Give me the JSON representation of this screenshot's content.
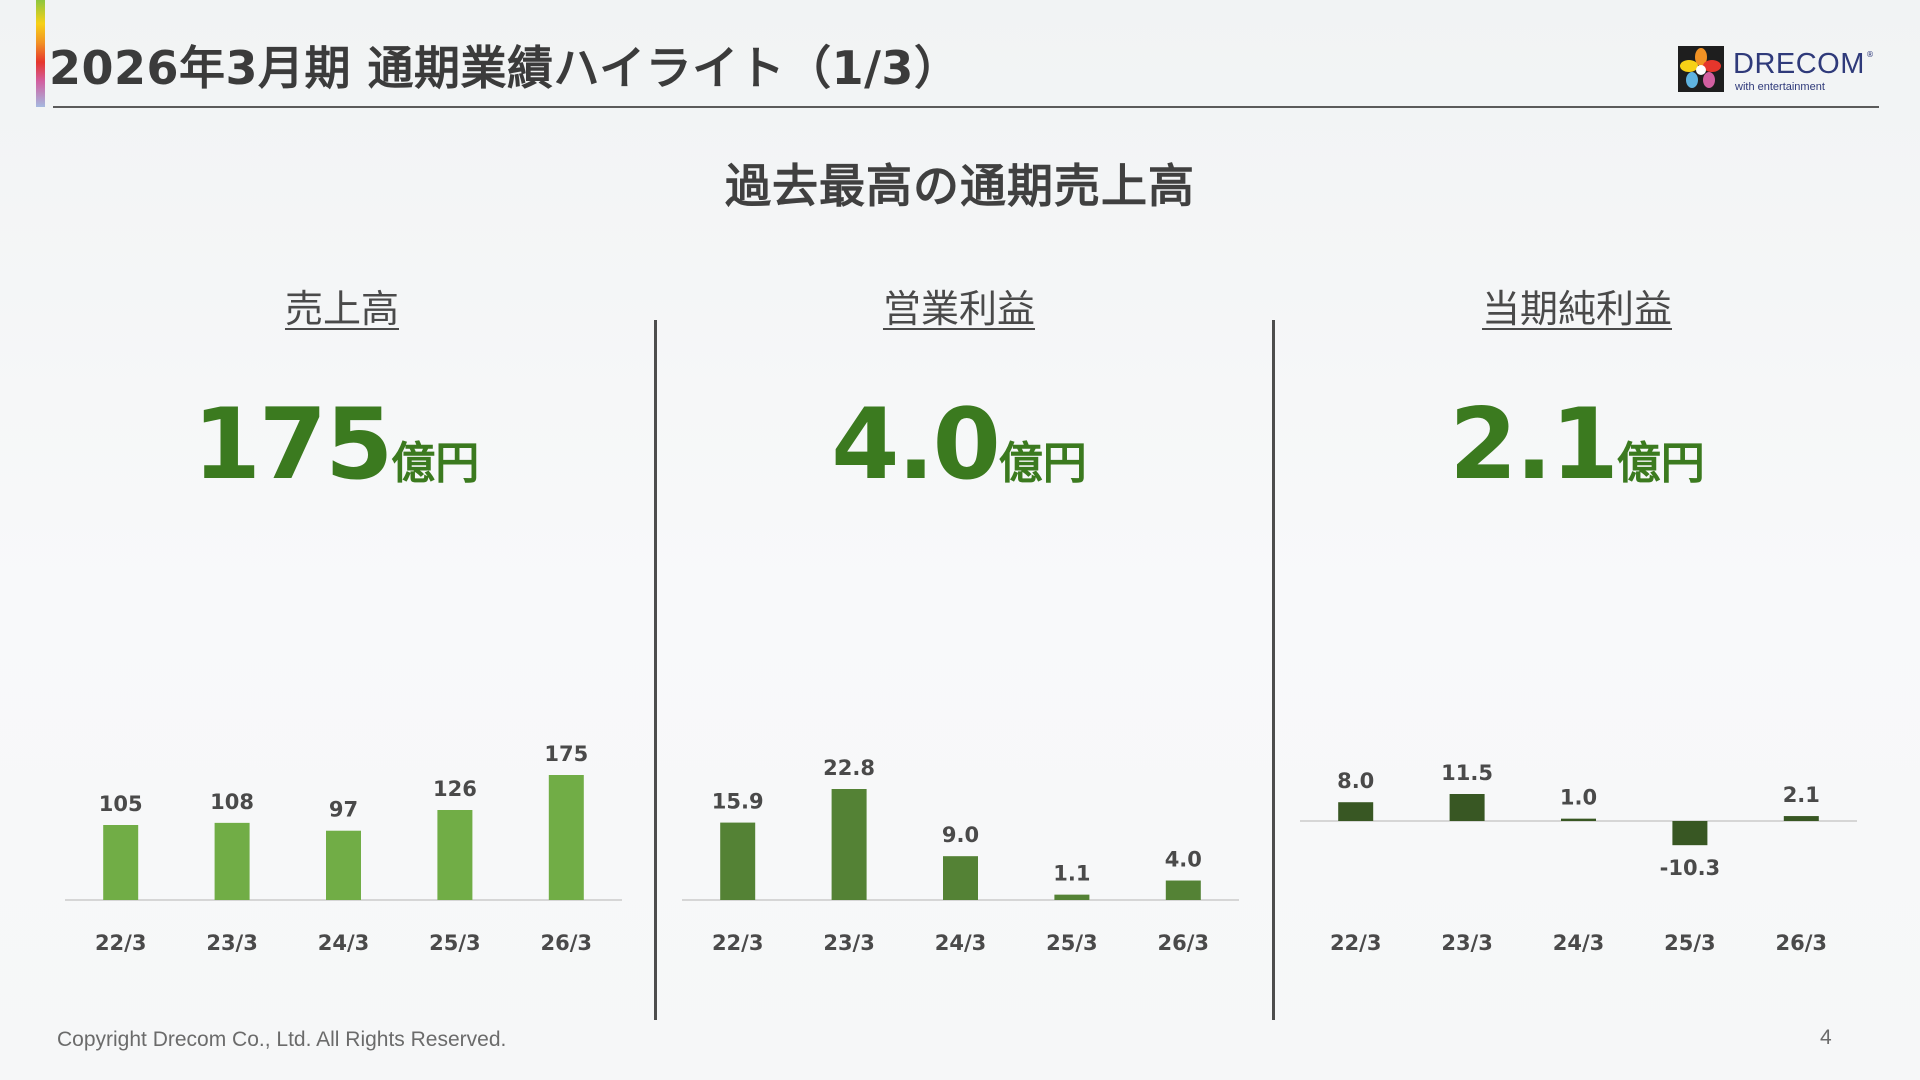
{
  "slide": {
    "title": "2026年3月期 通期業績ハイライト（1/3）",
    "headline": "過去最高の通期売上高",
    "copyright": "Copyright Drecom Co., Ltd. All Rights Reserved.",
    "page_number": "4"
  },
  "logo": {
    "wordmark": "DRECOM",
    "registered": "®",
    "tagline": "with entertainment"
  },
  "panels": [
    {
      "title": "売上高",
      "value": "175",
      "unit": "億円"
    },
    {
      "title": "営業利益",
      "value": "4.0",
      "unit": "億円"
    },
    {
      "title": "当期純利益",
      "value": "2.1",
      "unit": "億円"
    }
  ],
  "chart_data": [
    {
      "type": "bar",
      "title": "売上高",
      "categories": [
        "22/3",
        "23/3",
        "24/3",
        "25/3",
        "26/3"
      ],
      "values": [
        105,
        108,
        97,
        126,
        175
      ],
      "labels": [
        "105",
        "108",
        "97",
        "126",
        "175"
      ],
      "color": "#71ad46",
      "ylim": [
        0,
        175
      ],
      "grid": false
    },
    {
      "type": "bar",
      "title": "営業利益",
      "categories": [
        "22/3",
        "23/3",
        "24/3",
        "25/3",
        "26/3"
      ],
      "values": [
        15.9,
        22.8,
        9.0,
        1.1,
        4.0
      ],
      "labels": [
        "15.9",
        "22.8",
        "9.0",
        "1.1",
        "4.0"
      ],
      "color": "#548235",
      "ylim": [
        0,
        22.8
      ],
      "grid": false
    },
    {
      "type": "bar",
      "title": "当期純利益",
      "categories": [
        "22/3",
        "23/3",
        "24/3",
        "25/3",
        "26/3"
      ],
      "values": [
        8.0,
        11.5,
        1.0,
        -10.3,
        2.1
      ],
      "labels": [
        "8.0",
        "11.5",
        "1.0",
        "-10.3",
        "2.1"
      ],
      "color": "#385723",
      "ylim": [
        -10.3,
        11.5
      ],
      "grid": false
    }
  ]
}
